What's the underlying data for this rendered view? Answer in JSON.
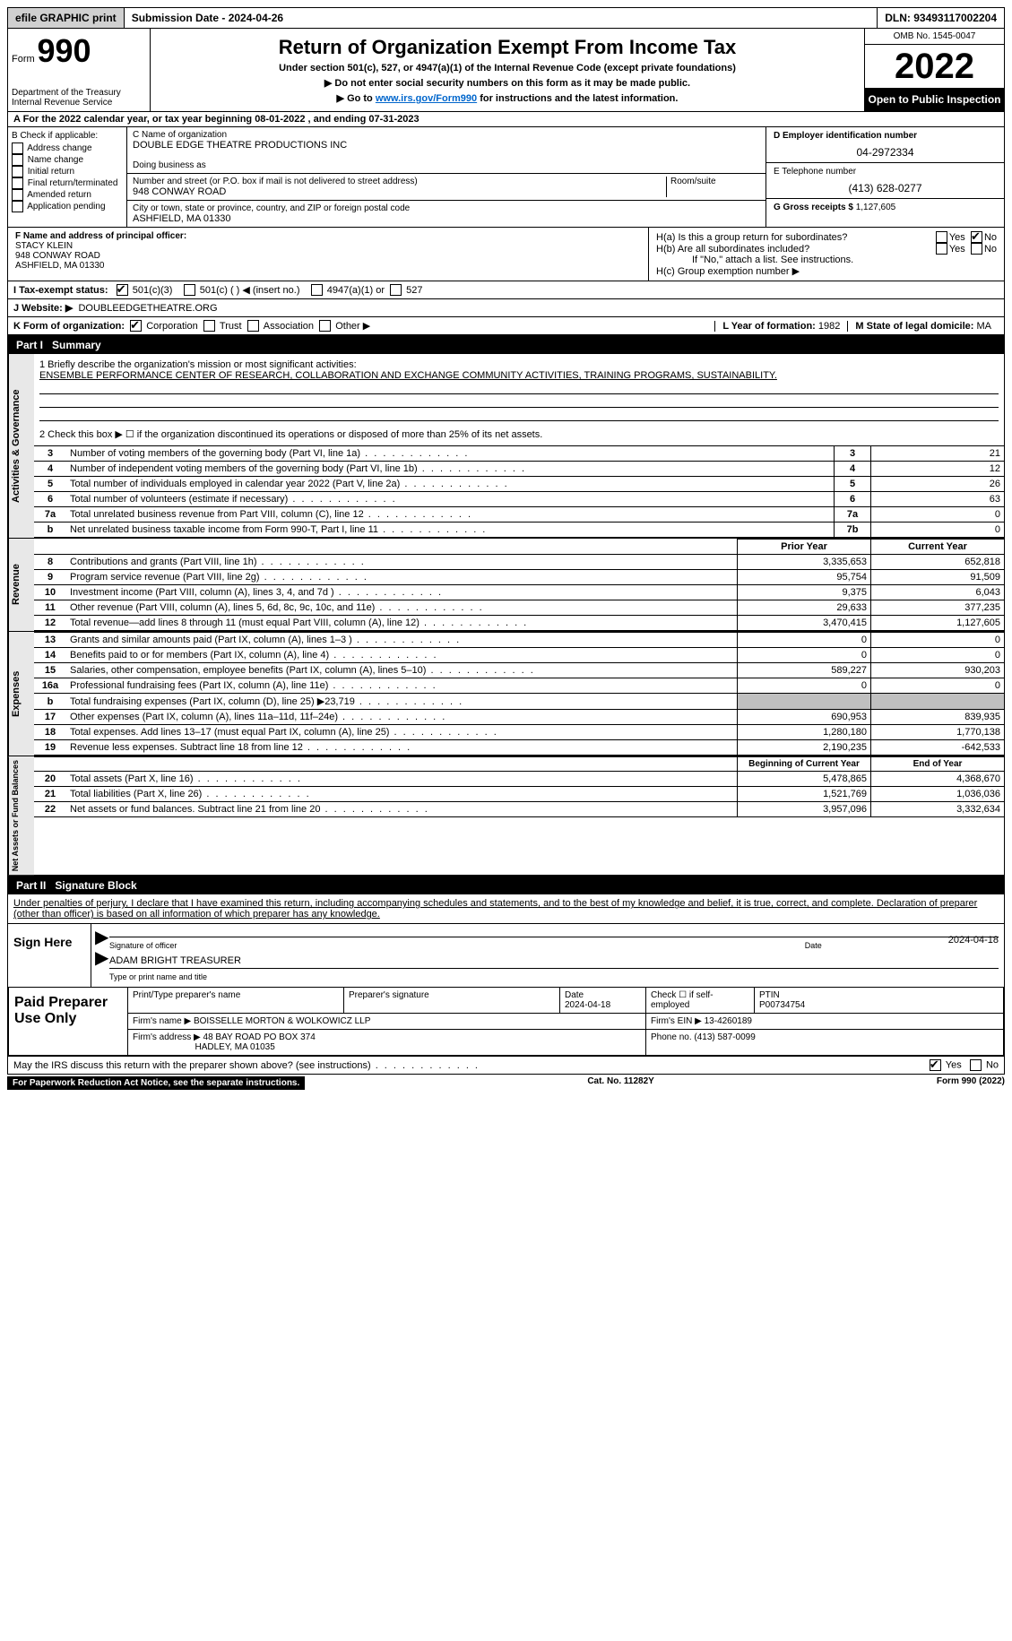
{
  "topbar": {
    "efile": "efile GRAPHIC print",
    "submission": "Submission Date - 2024-04-26",
    "dln": "DLN: 93493117002204"
  },
  "header": {
    "form_prefix": "Form",
    "form_num": "990",
    "dept": "Department of the Treasury Internal Revenue Service",
    "title": "Return of Organization Exempt From Income Tax",
    "subtitle": "Under section 501(c), 527, or 4947(a)(1) of the Internal Revenue Code (except private foundations)",
    "note1": "▶ Do not enter social security numbers on this form as it may be made public.",
    "note2_pre": "▶ Go to ",
    "note2_link": "www.irs.gov/Form990",
    "note2_post": " for instructions and the latest information.",
    "omb": "OMB No. 1545-0047",
    "year": "2022",
    "open": "Open to Public Inspection"
  },
  "rowA": "A For the 2022 calendar year, or tax year beginning 08-01-2022   , and ending 07-31-2023",
  "B": {
    "title": "B Check if applicable:",
    "items": [
      "Address change",
      "Name change",
      "Initial return",
      "Final return/terminated",
      "Amended return",
      "Application pending"
    ]
  },
  "C": {
    "name_label": "C Name of organization",
    "name": "DOUBLE EDGE THEATRE PRODUCTIONS INC",
    "dba_label": "Doing business as",
    "dba": "",
    "street_label": "Number and street (or P.O. box if mail is not delivered to street address)",
    "room_label": "Room/suite",
    "street": "948 CONWAY ROAD",
    "city_label": "City or town, state or province, country, and ZIP or foreign postal code",
    "city": "ASHFIELD, MA  01330"
  },
  "D": {
    "label": "D Employer identification number",
    "value": "04-2972334"
  },
  "E": {
    "label": "E Telephone number",
    "value": "(413) 628-0277"
  },
  "G": {
    "label": "G Gross receipts $",
    "value": "1,127,605"
  },
  "F": {
    "label": "F  Name and address of principal officer:",
    "name": "STACY KLEIN",
    "addr1": "948 CONWAY ROAD",
    "addr2": "ASHFIELD, MA  01330"
  },
  "H": {
    "a": "H(a)  Is this a group return for subordinates?",
    "b": "H(b)  Are all subordinates included?",
    "b_note": "If \"No,\" attach a list. See instructions.",
    "c": "H(c)  Group exemption number ▶",
    "yes": "Yes",
    "no": "No"
  },
  "I": {
    "label": "I   Tax-exempt status:",
    "opt1": "501(c)(3)",
    "opt2": "501(c) (  ) ◀ (insert no.)",
    "opt3": "4947(a)(1) or",
    "opt4": "527"
  },
  "J": {
    "label": "J   Website: ▶",
    "value": "DOUBLEEDGETHEATRE.ORG"
  },
  "K": {
    "label": "K Form of organization:",
    "corp": "Corporation",
    "trust": "Trust",
    "assoc": "Association",
    "other": "Other ▶"
  },
  "L": {
    "label": "L Year of formation:",
    "value": "1982"
  },
  "M": {
    "label": "M State of legal domicile:",
    "value": "MA"
  },
  "part1": {
    "title": "Part I",
    "name": "Summary",
    "line1_label": "1  Briefly describe the organization's mission or most significant activities:",
    "line1_value": "ENSEMBLE PERFORMANCE CENTER OF RESEARCH, COLLABORATION AND EXCHANGE COMMUNITY ACTIVITIES, TRAINING PROGRAMS, SUSTAINABILITY.",
    "line2": "2    Check this box ▶ ☐  if the organization discontinued its operations or disposed of more than 25% of its net assets.",
    "rows_top": [
      {
        "n": "3",
        "desc": "Number of voting members of the governing body (Part VI, line 1a)",
        "box": "3",
        "v": "21"
      },
      {
        "n": "4",
        "desc": "Number of independent voting members of the governing body (Part VI, line 1b)",
        "box": "4",
        "v": "12"
      },
      {
        "n": "5",
        "desc": "Total number of individuals employed in calendar year 2022 (Part V, line 2a)",
        "box": "5",
        "v": "26"
      },
      {
        "n": "6",
        "desc": "Total number of volunteers (estimate if necessary)",
        "box": "6",
        "v": "63"
      },
      {
        "n": "7a",
        "desc": "Total unrelated business revenue from Part VIII, column (C), line 12",
        "box": "7a",
        "v": "0"
      },
      {
        "n": "b",
        "desc": "Net unrelated business taxable income from Form 990-T, Part I, line 11",
        "box": "7b",
        "v": "0"
      }
    ],
    "col_headers": {
      "prior": "Prior Year",
      "current": "Current Year"
    },
    "revenue": [
      {
        "n": "8",
        "desc": "Contributions and grants (Part VIII, line 1h)",
        "p": "3,335,653",
        "c": "652,818"
      },
      {
        "n": "9",
        "desc": "Program service revenue (Part VIII, line 2g)",
        "p": "95,754",
        "c": "91,509"
      },
      {
        "n": "10",
        "desc": "Investment income (Part VIII, column (A), lines 3, 4, and 7d )",
        "p": "9,375",
        "c": "6,043"
      },
      {
        "n": "11",
        "desc": "Other revenue (Part VIII, column (A), lines 5, 6d, 8c, 9c, 10c, and 11e)",
        "p": "29,633",
        "c": "377,235"
      },
      {
        "n": "12",
        "desc": "Total revenue—add lines 8 through 11 (must equal Part VIII, column (A), line 12)",
        "p": "3,470,415",
        "c": "1,127,605"
      }
    ],
    "expenses": [
      {
        "n": "13",
        "desc": "Grants and similar amounts paid (Part IX, column (A), lines 1–3 )",
        "p": "0",
        "c": "0"
      },
      {
        "n": "14",
        "desc": "Benefits paid to or for members (Part IX, column (A), line 4)",
        "p": "0",
        "c": "0"
      },
      {
        "n": "15",
        "desc": "Salaries, other compensation, employee benefits (Part IX, column (A), lines 5–10)",
        "p": "589,227",
        "c": "930,203"
      },
      {
        "n": "16a",
        "desc": "Professional fundraising fees (Part IX, column (A), line 11e)",
        "p": "0",
        "c": "0"
      },
      {
        "n": "b",
        "desc": "Total fundraising expenses (Part IX, column (D), line 25) ▶23,719",
        "p": "",
        "c": "",
        "shaded": true
      },
      {
        "n": "17",
        "desc": "Other expenses (Part IX, column (A), lines 11a–11d, 11f–24e)",
        "p": "690,953",
        "c": "839,935"
      },
      {
        "n": "18",
        "desc": "Total expenses. Add lines 13–17 (must equal Part IX, column (A), line 25)",
        "p": "1,280,180",
        "c": "1,770,138"
      },
      {
        "n": "19",
        "desc": "Revenue less expenses. Subtract line 18 from line 12",
        "p": "2,190,235",
        "c": "-642,533"
      }
    ],
    "net_headers": {
      "begin": "Beginning of Current Year",
      "end": "End of Year"
    },
    "net": [
      {
        "n": "20",
        "desc": "Total assets (Part X, line 16)",
        "p": "5,478,865",
        "c": "4,368,670"
      },
      {
        "n": "21",
        "desc": "Total liabilities (Part X, line 26)",
        "p": "1,521,769",
        "c": "1,036,036"
      },
      {
        "n": "22",
        "desc": "Net assets or fund balances. Subtract line 21 from line 20",
        "p": "3,957,096",
        "c": "3,332,634"
      }
    ],
    "side_labels": {
      "ag": "Activities & Governance",
      "rev": "Revenue",
      "exp": "Expenses",
      "net": "Net Assets or Fund Balances"
    }
  },
  "part2": {
    "title": "Part II",
    "name": "Signature Block",
    "penalty": "Under penalties of perjury, I declare that I have examined this return, including accompanying schedules and statements, and to the best of my knowledge and belief, it is true, correct, and complete. Declaration of preparer (other than officer) is based on all information of which preparer has any knowledge.",
    "sign_here": "Sign Here",
    "sig_officer": "Signature of officer",
    "sig_date": "2024-04-18",
    "date_label": "Date",
    "name_title": "ADAM BRIGHT TREASURER",
    "name_title_label": "Type or print name and title",
    "paid": "Paid Preparer Use Only",
    "prep_name_label": "Print/Type preparer's name",
    "prep_sig_label": "Preparer's signature",
    "prep_date_label": "Date",
    "prep_date": "2024-04-18",
    "check_self": "Check ☐ if self-employed",
    "ptin_label": "PTIN",
    "ptin": "P00734754",
    "firm_name_label": "Firm's name    ▶",
    "firm_name": "BOISSELLE MORTON & WOLKOWICZ LLP",
    "firm_ein_label": "Firm's EIN ▶",
    "firm_ein": "13-4260189",
    "firm_addr_label": "Firm's address ▶",
    "firm_addr1": "48 BAY ROAD PO BOX 374",
    "firm_addr2": "HADLEY, MA  01035",
    "phone_label": "Phone no.",
    "phone": "(413) 587-0099",
    "discuss": "May the IRS discuss this return with the preparer shown above? (see instructions)",
    "yes": "Yes",
    "no": "No"
  },
  "footer": {
    "left": "For Paperwork Reduction Act Notice, see the separate instructions.",
    "mid": "Cat. No. 11282Y",
    "right": "Form 990 (2022)"
  }
}
